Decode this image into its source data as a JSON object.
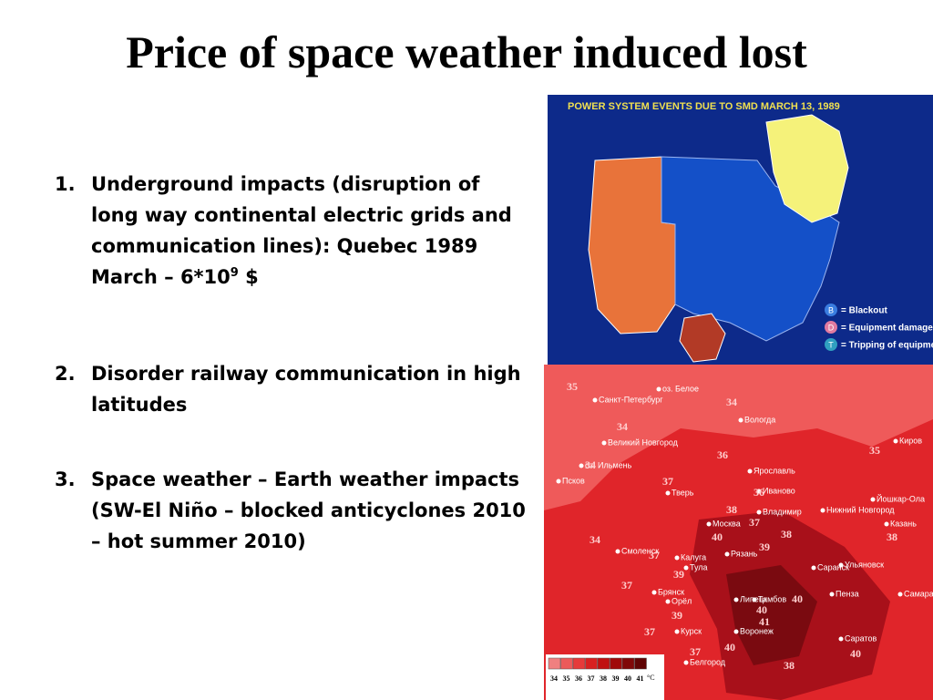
{
  "header": {
    "title": "Price of space weather induced lost"
  },
  "list": {
    "items": [
      {
        "number": "1.",
        "text": "Underground impacts (disruption of long way continental electric grids and communication lines): Quebec 1989 March – 6*10",
        "sup": "9",
        "tail": " $"
      },
      {
        "number": "2.",
        "text": "Disorder railway communication in high latitudes"
      },
      {
        "number": "3.",
        "text": "Space weather – Earth weather impacts (SW-El Niño – blocked anticyclones 2010 – hot summer 2010)"
      }
    ]
  },
  "power_map": {
    "title": "POWER SYSTEM EVENTS DUE TO SMD MARCH 13, 1989",
    "legend": [
      {
        "symbol": "B",
        "label": "= Blackout"
      },
      {
        "symbol": "D",
        "label": "= Equipment damage"
      },
      {
        "symbol": "T",
        "label": "= Tripping of equipment"
      }
    ]
  },
  "heat_map": {
    "cities": [
      "Санкт-Петербург",
      "оз. Белое",
      "Вологда",
      "Великий Новгород",
      "оз. Ильмень",
      "Псков",
      "Киров",
      "Ярославль",
      "Тверь",
      "Иваново",
      "Владимир",
      "Нижний Новгород",
      "Йошкар-Ола",
      "Казань",
      "Москва",
      "Смоленск",
      "Калуга",
      "Тула",
      "Рязань",
      "Саранск",
      "Ульяновск",
      "Брянск",
      "Орёл",
      "Липецк",
      "Тамбов",
      "Пенза",
      "Самара",
      "Курск",
      "Воронеж",
      "Белгород",
      "Саратов"
    ],
    "temps": [
      35,
      34,
      34,
      34,
      35,
      36,
      37,
      36,
      38,
      37,
      40,
      39,
      38,
      38,
      34,
      37,
      39,
      37,
      39,
      40,
      40,
      41,
      37,
      37,
      40,
      38,
      40
    ],
    "scale": [
      34,
      35,
      36,
      37,
      38,
      39,
      40,
      41
    ],
    "unit": "°C"
  }
}
